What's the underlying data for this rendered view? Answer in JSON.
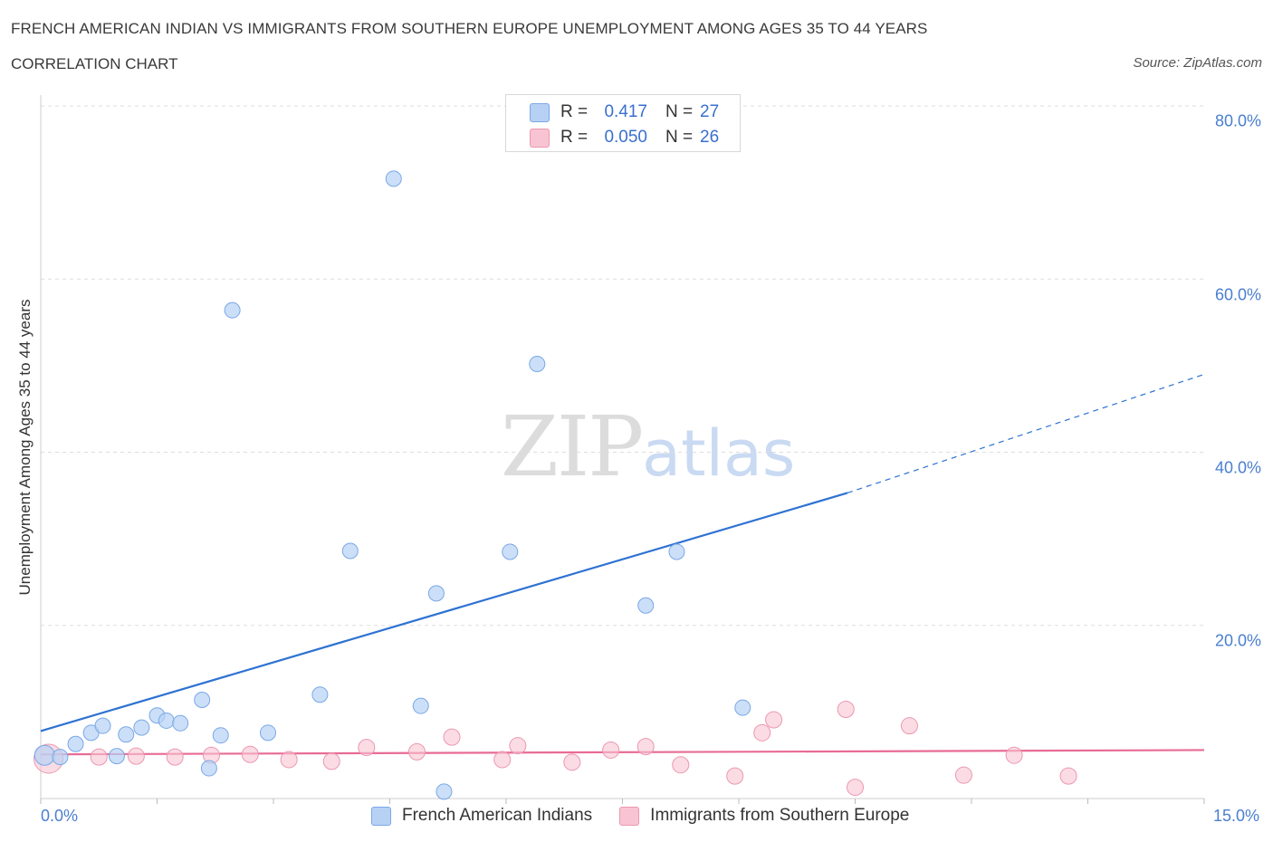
{
  "header": {
    "title": "FRENCH AMERICAN INDIAN VS IMMIGRANTS FROM SOUTHERN EUROPE UNEMPLOYMENT AMONG AGES 35 TO 44 YEARS",
    "subtitle": "CORRELATION CHART",
    "source": "Source: ZipAtlas.com"
  },
  "watermark": {
    "zip": "ZIP",
    "atlas": "atlas"
  },
  "legend": {
    "rows": [
      {
        "r_label": "R =",
        "r_value": "0.417",
        "n_label": "N =",
        "n_value": "27"
      },
      {
        "r_label": "R =",
        "r_value": "0.050",
        "n_label": "N =",
        "n_value": "26"
      }
    ]
  },
  "colors": {
    "series1_fill": "#b7d1f5",
    "series1_stroke": "#7aa8e6",
    "series1_line": "#2e72d2",
    "series2_fill": "#f8c4d3",
    "series2_stroke": "#ec97b0",
    "series2_line": "#e86b95",
    "tick_text": "#4a7fd0",
    "grid": "#dddddd"
  },
  "chart_data": {
    "type": "scatter",
    "title": "FRENCH AMERICAN INDIAN VS IMMIGRANTS FROM SOUTHERN EUROPE UNEMPLOYMENT AMONG AGES 35 TO 44 YEARS",
    "subtitle": "CORRELATION CHART",
    "xlabel": "",
    "ylabel": "Unemployment Among Ages 35 to 44 years",
    "xlim": [
      0,
      15
    ],
    "ylim": [
      0,
      80
    ],
    "x_ticks": [
      "0.0%",
      "15.0%"
    ],
    "y_ticks": [
      "20.0%",
      "40.0%",
      "60.0%",
      "80.0%"
    ],
    "y_tick_values": [
      20,
      40,
      60,
      80
    ],
    "grid": true,
    "legend_position": "bottom",
    "series": [
      {
        "name": "French American Indians",
        "r": 0.417,
        "n": 27,
        "points": [
          [
            0.05,
            5.0
          ],
          [
            0.25,
            4.8
          ],
          [
            0.45,
            6.3
          ],
          [
            0.65,
            7.6
          ],
          [
            0.8,
            8.4
          ],
          [
            0.98,
            4.9
          ],
          [
            1.1,
            7.4
          ],
          [
            1.3,
            8.2
          ],
          [
            1.5,
            9.6
          ],
          [
            1.62,
            9.0
          ],
          [
            1.8,
            8.7
          ],
          [
            2.08,
            11.4
          ],
          [
            2.17,
            3.5
          ],
          [
            2.32,
            7.3
          ],
          [
            2.47,
            56.4
          ],
          [
            2.93,
            7.6
          ],
          [
            3.6,
            12.0
          ],
          [
            3.99,
            28.6
          ],
          [
            4.55,
            71.6
          ],
          [
            4.9,
            10.7
          ],
          [
            5.1,
            23.7
          ],
          [
            5.2,
            0.8
          ],
          [
            6.05,
            28.5
          ],
          [
            6.4,
            50.2
          ],
          [
            7.8,
            22.3
          ],
          [
            8.2,
            28.5
          ],
          [
            9.05,
            10.5
          ]
        ],
        "trend": {
          "x": [
            0,
            10.4
          ],
          "y": [
            7.8,
            35.3
          ],
          "dashed_to": {
            "x": 15,
            "y": 49.0
          }
        }
      },
      {
        "name": "Immigrants from Southern Europe",
        "r": 0.05,
        "n": 26,
        "points": [
          [
            0.1,
            4.6
          ],
          [
            0.75,
            4.8
          ],
          [
            1.23,
            4.9
          ],
          [
            1.73,
            4.8
          ],
          [
            2.2,
            5.0
          ],
          [
            2.7,
            5.1
          ],
          [
            3.2,
            4.5
          ],
          [
            3.75,
            4.3
          ],
          [
            4.2,
            5.9
          ],
          [
            4.85,
            5.4
          ],
          [
            5.3,
            7.1
          ],
          [
            5.95,
            4.5
          ],
          [
            6.15,
            6.1
          ],
          [
            6.85,
            4.2
          ],
          [
            7.35,
            5.6
          ],
          [
            7.8,
            6.0
          ],
          [
            8.25,
            3.9
          ],
          [
            8.95,
            2.6
          ],
          [
            9.3,
            7.6
          ],
          [
            9.45,
            9.1
          ],
          [
            10.38,
            10.3
          ],
          [
            10.5,
            1.3
          ],
          [
            11.2,
            8.4
          ],
          [
            11.9,
            2.7
          ],
          [
            12.55,
            5.0
          ],
          [
            13.25,
            2.6
          ]
        ],
        "trend": {
          "x": [
            0,
            15
          ],
          "y": [
            5.1,
            5.6
          ]
        }
      }
    ]
  }
}
